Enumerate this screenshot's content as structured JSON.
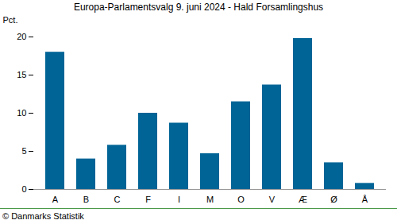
{
  "chart_data": {
    "type": "bar",
    "title": "Europa-Parlamentsvalg 9. juni 2024 - Hald Forsamlingshus",
    "y_label": "Pct.",
    "caption": "© Danmarks Statistik",
    "categories": [
      "A",
      "B",
      "C",
      "F",
      "I",
      "M",
      "O",
      "V",
      "Æ",
      "Ø",
      "Å"
    ],
    "values": [
      18.0,
      4.0,
      5.8,
      10.0,
      8.7,
      4.7,
      11.5,
      13.7,
      19.8,
      3.5,
      0.8
    ],
    "color": "#006496",
    "ylim": [
      0,
      20
    ],
    "yticks": [
      0,
      5,
      10,
      15,
      20
    ],
    "grid": false
  }
}
